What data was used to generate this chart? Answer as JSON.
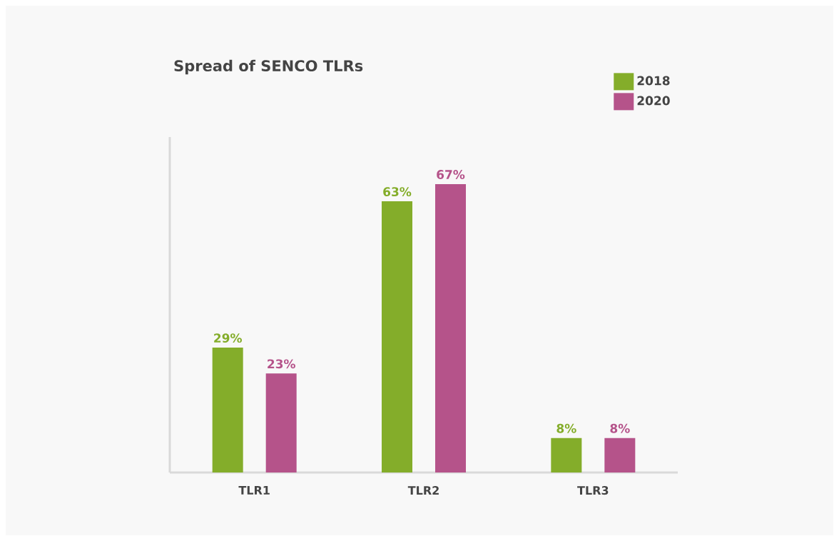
{
  "chart_data": {
    "type": "bar",
    "title": "Spread of SENCO TLRs",
    "categories": [
      "TLR1",
      "TLR2",
      "TLR3"
    ],
    "series": [
      {
        "name": "2018",
        "color": "#84ad2a",
        "values": [
          29,
          63,
          8
        ],
        "value_labels": [
          "29%",
          "63%",
          "8%"
        ]
      },
      {
        "name": "2020",
        "color": "#b5538a",
        "values": [
          23,
          67,
          8
        ],
        "value_labels": [
          "23%",
          "67%",
          "8%"
        ]
      }
    ],
    "legend": "top right"
  }
}
